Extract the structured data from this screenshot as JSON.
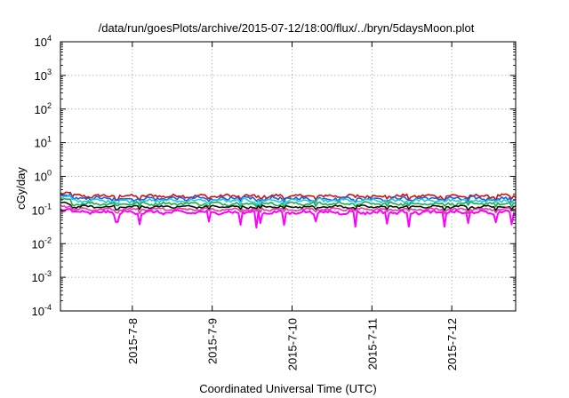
{
  "chart_data": {
    "type": "line",
    "title": "/data/run/goesPlots/archive/2015-07-12/18:00/flux/../bryn/5daysMoon.plot",
    "xlabel": "Coordinated Universal Time (UTC)",
    "ylabel": "cGy/day",
    "yscale": "log",
    "ylim_exp": [
      -4,
      4
    ],
    "xlim_days": [
      7.1,
      12.8
    ],
    "x_ticks": [
      {
        "day": 8,
        "label": "2015-7-8"
      },
      {
        "day": 9,
        "label": "2015-7-9"
      },
      {
        "day": 10,
        "label": "2015-7-10"
      },
      {
        "day": 11,
        "label": "2015-7-11"
      },
      {
        "day": 12,
        "label": "2015-7-12"
      }
    ],
    "y_ticks": [
      {
        "exp": 4,
        "base": "10",
        "sup": "4"
      },
      {
        "exp": 3,
        "base": "10",
        "sup": "3"
      },
      {
        "exp": 2,
        "base": "10",
        "sup": "2"
      },
      {
        "exp": 1,
        "base": "10",
        "sup": "1"
      },
      {
        "exp": 0,
        "base": "10",
        "sup": "0"
      },
      {
        "exp": -1,
        "base": "10",
        "sup": "-1"
      },
      {
        "exp": -2,
        "base": "10",
        "sup": "-2"
      },
      {
        "exp": -3,
        "base": "10",
        "sup": "-3"
      },
      {
        "exp": -4,
        "base": "10",
        "sup": "-4"
      }
    ],
    "grid": true,
    "series": [
      {
        "color": "#d01010",
        "level": 0.26,
        "jitter": 0.1,
        "spikes": false
      },
      {
        "color": "#1e5fd6",
        "level": 0.22,
        "jitter": 0.12,
        "spikes": false
      },
      {
        "color": "#20c8e8",
        "level": 0.19,
        "jitter": 0.1,
        "spikes": false
      },
      {
        "color": "#18b040",
        "level": 0.155,
        "jitter": 0.08,
        "spikes": false
      },
      {
        "color": "#101010",
        "level": 0.125,
        "jitter": 0.06,
        "spikes": false
      },
      {
        "color": "#e040a0",
        "level": 0.105,
        "jitter": 0.06,
        "spikes": false
      },
      {
        "color": "#ff00ff",
        "level": 0.085,
        "jitter": 0.1,
        "spikes": true
      }
    ]
  }
}
